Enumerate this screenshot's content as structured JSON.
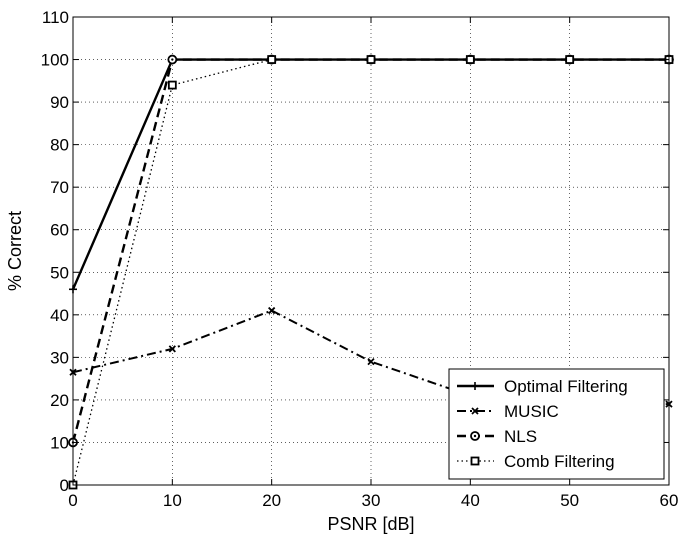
{
  "chart_data": {
    "type": "line",
    "title": "",
    "xlabel": "PSNR [dB]",
    "ylabel": "% Correct",
    "xlim": [
      0,
      60
    ],
    "ylim": [
      0,
      110
    ],
    "xticks": [
      0,
      10,
      20,
      30,
      40,
      50,
      60
    ],
    "yticks": [
      0,
      10,
      20,
      30,
      40,
      50,
      60,
      70,
      80,
      90,
      100,
      110
    ],
    "grid": true,
    "legend_position": "bottom-right",
    "x": [
      0,
      10,
      20,
      30,
      40,
      50,
      60
    ],
    "series": [
      {
        "name": "Optimal Filtering",
        "values": [
          46,
          100,
          100,
          100,
          100,
          100,
          100
        ],
        "marker": "plus",
        "line": "solid"
      },
      {
        "name": "MUSIC",
        "values": [
          26.5,
          32,
          41,
          29,
          21,
          19,
          19
        ],
        "marker": "x",
        "line": "dashdot"
      },
      {
        "name": "NLS",
        "values": [
          10,
          100,
          100,
          100,
          100,
          100,
          100
        ],
        "marker": "circle",
        "line": "dashed"
      },
      {
        "name": "Comb Filtering",
        "values": [
          0,
          94,
          100,
          100,
          100,
          100,
          100
        ],
        "marker": "square",
        "line": "dotted"
      }
    ]
  }
}
